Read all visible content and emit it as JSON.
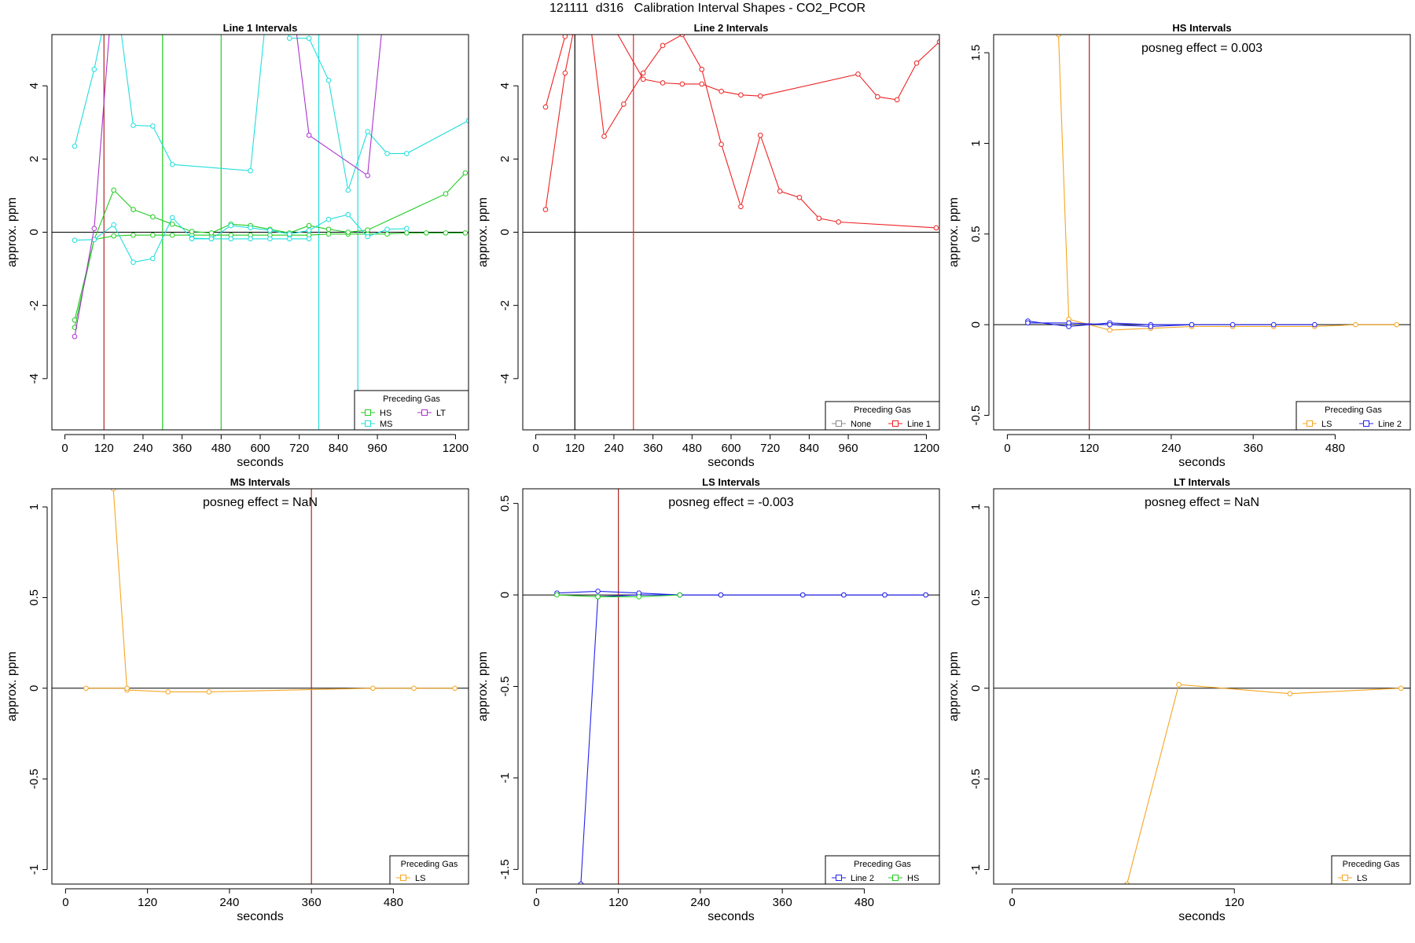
{
  "figure_title": "121111  d316   Calibration Interval Shapes - CO2_PCOR",
  "chart_data": [
    {
      "type": "line",
      "title": "Line 1 Intervals",
      "xlabel": "seconds",
      "ylabel": "approx. ppm",
      "xlim": [
        -40,
        1240
      ],
      "ylim": [
        -5.4,
        5.4
      ],
      "xticks": [
        0,
        120,
        240,
        360,
        480,
        600,
        720,
        840,
        960,
        1200
      ],
      "yticks": [
        -4,
        -2,
        0,
        2,
        4
      ],
      "annotation": "",
      "vlines": [
        {
          "x": 120,
          "color": "#b22222"
        },
        {
          "x": 300,
          "color": "#22cc22"
        },
        {
          "x": 480,
          "color": "#22cc22"
        },
        {
          "x": 780,
          "color": "#22dddd"
        },
        {
          "x": 900,
          "color": "#22dddd"
        }
      ],
      "legend": {
        "title": "Preceding Gas",
        "position": "bottom-right",
        "entries": [
          {
            "label": "HS",
            "color": "#22cc22"
          },
          {
            "label": "LT",
            "color": "#aa33cc"
          },
          {
            "label": "MS",
            "color": "#22dddd"
          }
        ]
      },
      "series": [
        {
          "name": "HS",
          "color": "#22cc22",
          "x": [
            30,
            90,
            150,
            210,
            270,
            330,
            390,
            450,
            510,
            570,
            630,
            690,
            750,
            810,
            870,
            930,
            990,
            1050,
            1110,
            1170,
            1230
          ],
          "y": [
            -2.6,
            -0.2,
            -0.1,
            -0.08,
            -0.08,
            -0.08,
            -0.08,
            -0.08,
            -0.08,
            -0.08,
            -0.08,
            -0.08,
            -0.08,
            -0.05,
            -0.05,
            -0.05,
            -0.05,
            -0.02,
            -0.02,
            -0.02,
            -0.02
          ]
        },
        {
          "name": "HS",
          "color": "#22cc22",
          "x": [
            30,
            90,
            150,
            210,
            270,
            330,
            390,
            450,
            510,
            570,
            630,
            690,
            750,
            810,
            870,
            930,
            1170,
            1230
          ],
          "y": [
            -2.4,
            -0.2,
            1.15,
            0.62,
            0.42,
            0.22,
            0.02,
            -0.02,
            0.22,
            0.18,
            0.08,
            -0.02,
            0.18,
            0.08,
            0.0,
            0.06,
            1.05,
            1.62
          ]
        },
        {
          "name": "MS",
          "color": "#22dddd",
          "x": [
            30,
            90,
            150,
            210,
            270,
            330,
            390,
            450,
            510,
            570,
            630,
            690,
            750,
            810,
            870,
            930,
            990,
            1050
          ],
          "y": [
            -0.22,
            -0.2,
            0.2,
            -0.82,
            -0.72,
            0.4,
            -0.16,
            -0.18,
            0.18,
            0.12,
            0.05,
            -0.05,
            0.05,
            0.35,
            0.48,
            -0.12,
            0.08,
            0.1
          ]
        },
        {
          "name": "MS",
          "color": "#22dddd",
          "x": [
            30,
            90,
            150,
            210,
            270,
            330,
            570,
            630,
            690,
            750,
            810,
            870,
            930,
            990,
            1050,
            1240
          ],
          "y": [
            2.35,
            4.45,
            7,
            2.92,
            2.9,
            1.85,
            1.68,
            7,
            5.3,
            5.3,
            4.15,
            1.15,
            2.75,
            2.15,
            2.15,
            3.05
          ]
        },
        {
          "name": "MS",
          "color": "#22dddd",
          "x": [
            390,
            450,
            510,
            570,
            630,
            690,
            750
          ],
          "y": [
            -0.18,
            -0.18,
            -0.18,
            -0.18,
            -0.18,
            -0.18,
            -0.18
          ]
        },
        {
          "name": "LT",
          "color": "#aa33cc",
          "x": [
            30,
            90,
            150
          ],
          "y": [
            -2.85,
            0.1,
            7
          ]
        },
        {
          "name": "LT",
          "color": "#aa33cc",
          "x": [
            690,
            750,
            930,
            990
          ],
          "y": [
            7,
            2.65,
            1.55,
            7
          ]
        }
      ]
    },
    {
      "type": "line",
      "title": "Line 2 Intervals",
      "xlabel": "seconds",
      "ylabel": "approx. ppm",
      "xlim": [
        -40,
        1240
      ],
      "ylim": [
        -5.4,
        5.4
      ],
      "xticks": [
        0,
        120,
        240,
        360,
        480,
        600,
        720,
        840,
        960,
        1200
      ],
      "yticks": [
        -4,
        -2,
        0,
        2,
        4
      ],
      "annotation": "",
      "vlines": [
        {
          "x": 120,
          "color": "#000000"
        },
        {
          "x": 300,
          "color": "#ee2222"
        }
      ],
      "legend": {
        "title": "Preceding Gas",
        "position": "bottom-right",
        "entries": [
          {
            "label": "None",
            "color": "#888888"
          },
          {
            "label": "Line 1",
            "color": "#ee2222"
          }
        ]
      },
      "series": [
        {
          "name": "Line 1",
          "color": "#ee2222",
          "x": [
            30,
            90,
            150,
            210,
            270,
            330,
            390,
            450,
            510,
            570,
            630,
            690,
            750,
            810,
            870,
            930,
            1230
          ],
          "y": [
            0.62,
            4.35,
            7,
            2.62,
            3.5,
            4.35,
            5.1,
            5.4,
            4.45,
            2.4,
            0.7,
            2.65,
            1.12,
            0.95,
            0.38,
            0.28,
            0.12
          ]
        },
        {
          "name": "Line 1",
          "color": "#ee2222",
          "x": [
            30,
            90,
            150,
            330,
            390,
            450,
            510,
            570,
            630,
            690,
            990,
            1050,
            1110,
            1170,
            1240
          ],
          "y": [
            3.42,
            5.35,
            7,
            4.18,
            4.08,
            4.05,
            4.05,
            3.85,
            3.75,
            3.72,
            4.32,
            3.7,
            3.62,
            4.62,
            5.2
          ]
        }
      ]
    },
    {
      "type": "line",
      "title": "HS Intervals",
      "xlabel": "seconds",
      "ylabel": "approx. ppm",
      "xlim": [
        -20,
        590
      ],
      "ylim": [
        -0.58,
        1.6
      ],
      "xticks": [
        0,
        120,
        240,
        360,
        480
      ],
      "yticks": [
        -0.5,
        0.0,
        0.5,
        1.0,
        1.5
      ],
      "annotation": "posneg effect = 0.003",
      "vlines": [
        {
          "x": 120,
          "color": "#b22222"
        }
      ],
      "legend": {
        "title": "Preceding Gas",
        "position": "bottom-right",
        "entries": [
          {
            "label": "LS",
            "color": "#f5a623"
          },
          {
            "label": "Line 2",
            "color": "#2222ee"
          }
        ]
      },
      "series": [
        {
          "name": "LS",
          "color": "#f5a623",
          "x": [
            75,
            90,
            150,
            210,
            270,
            330,
            390,
            450,
            510,
            570
          ],
          "y": [
            1.6,
            0.03,
            -0.03,
            -0.02,
            -0.01,
            -0.01,
            -0.01,
            -0.01,
            0.0,
            0.0
          ]
        },
        {
          "name": "Line 2",
          "color": "#2222ee",
          "x": [
            30,
            90,
            150,
            210,
            270,
            330,
            390,
            450
          ],
          "y": [
            0.02,
            -0.01,
            0.01,
            0.0,
            0.0,
            0.0,
            0.0,
            0.0
          ]
        },
        {
          "name": "Line 2",
          "color": "#2222ee",
          "x": [
            30,
            90,
            150,
            210,
            270
          ],
          "y": [
            0.01,
            0.01,
            0.0,
            -0.01,
            0.0
          ]
        }
      ]
    },
    {
      "type": "line",
      "title": "MS Intervals",
      "xlabel": "seconds",
      "ylabel": "approx. ppm",
      "xlim": [
        -20,
        590
      ],
      "ylim": [
        -1.08,
        1.1
      ],
      "xticks": [
        0,
        120,
        240,
        360,
        480
      ],
      "yticks": [
        -1.0,
        -0.5,
        0.0,
        0.5,
        1.0
      ],
      "annotation": "posneg effect = NaN",
      "vlines": [
        {
          "x": 360,
          "color": "#b22222"
        }
      ],
      "legend": {
        "title": "Preceding Gas",
        "position": "bottom-right",
        "entries": [
          {
            "label": "LS",
            "color": "#f5a623"
          }
        ]
      },
      "series": [
        {
          "name": "LS",
          "color": "#f5a623",
          "x": [
            70,
            90,
            150,
            210,
            450,
            510,
            570
          ],
          "y": [
            1.1,
            -0.01,
            -0.02,
            -0.02,
            0.0,
            0.0,
            0.0
          ]
        },
        {
          "name": "LS",
          "color": "#f5a623",
          "x": [
            30,
            90
          ],
          "y": [
            0.0,
            0.0
          ]
        }
      ]
    },
    {
      "type": "line",
      "title": "LS Intervals",
      "xlabel": "seconds",
      "ylabel": "approx. ppm",
      "xlim": [
        -20,
        590
      ],
      "ylim": [
        -1.58,
        0.58
      ],
      "xticks": [
        0,
        120,
        240,
        360,
        480
      ],
      "yticks": [
        -1.5,
        -1.0,
        -0.5,
        0.0,
        0.5
      ],
      "annotation": "posneg effect = -0.003",
      "vlines": [
        {
          "x": 120,
          "color": "#b22222"
        }
      ],
      "legend": {
        "title": "Preceding Gas",
        "position": "bottom-right",
        "entries": [
          {
            "label": "Line 2",
            "color": "#2222ee"
          },
          {
            "label": "HS",
            "color": "#22cc22"
          }
        ]
      },
      "series": [
        {
          "name": "Line 2",
          "color": "#2222ee",
          "x": [
            65,
            90,
            150,
            210,
            270,
            390,
            450,
            510,
            570
          ],
          "y": [
            -1.58,
            -0.01,
            0.0,
            0.0,
            0.0,
            0.0,
            0.0,
            0.0,
            0.0
          ]
        },
        {
          "name": "Line 2",
          "color": "#2222ee",
          "x": [
            30,
            90,
            150,
            210,
            270,
            390,
            450,
            510,
            570
          ],
          "y": [
            0.01,
            0.02,
            0.01,
            0.0,
            0.0,
            0.0,
            0.0,
            0.0,
            0.0
          ]
        },
        {
          "name": "HS",
          "color": "#22cc22",
          "x": [
            30,
            90,
            150,
            210
          ],
          "y": [
            0.0,
            -0.01,
            -0.01,
            0.0
          ]
        }
      ]
    },
    {
      "type": "line",
      "title": "LT Intervals",
      "xlabel": "seconds",
      "ylabel": "approx. ppm",
      "xlim": [
        -10,
        215
      ],
      "ylim": [
        -1.08,
        1.1
      ],
      "xticks": [
        0,
        120
      ],
      "yticks": [
        -1.0,
        -0.5,
        0.0,
        0.5,
        1.0
      ],
      "annotation": "posneg effect = NaN",
      "vlines": [],
      "legend": {
        "title": "Preceding Gas",
        "position": "bottom-right",
        "entries": [
          {
            "label": "LS",
            "color": "#f5a623"
          }
        ]
      },
      "series": [
        {
          "name": "LS",
          "color": "#f5a623",
          "x": [
            62,
            90,
            150,
            210
          ],
          "y": [
            -1.08,
            0.02,
            -0.03,
            0.0
          ]
        }
      ]
    }
  ]
}
